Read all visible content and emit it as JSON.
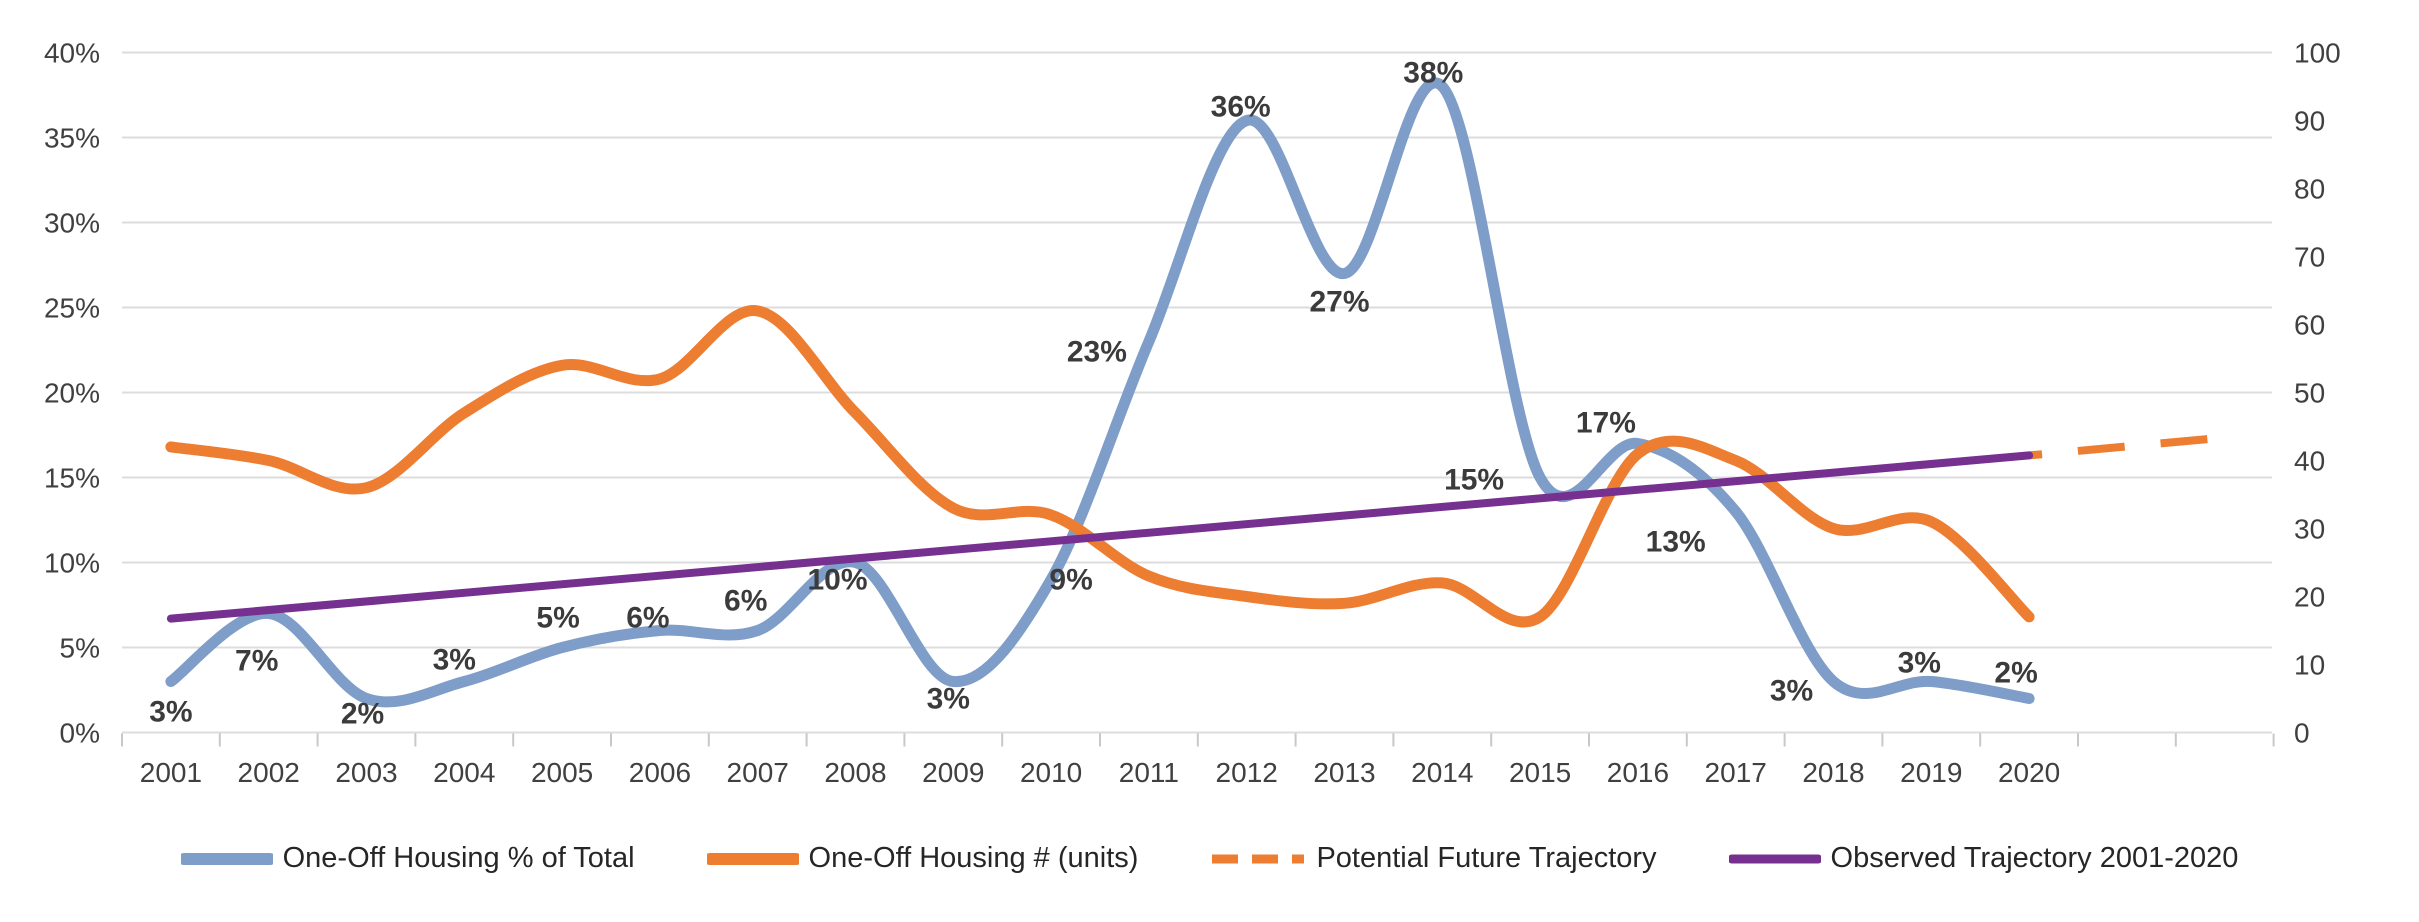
{
  "chart_data": {
    "type": "line",
    "title": "",
    "categories": [
      "2001",
      "2002",
      "2003",
      "2004",
      "2005",
      "2006",
      "2007",
      "2008",
      "2009",
      "2010",
      "2011",
      "2012",
      "2013",
      "2014",
      "2015",
      "2016",
      "2017",
      "2018",
      "2019",
      "2020"
    ],
    "left_axis": {
      "min": 0,
      "max": 40,
      "step": 5,
      "unit": "%",
      "ticks": [
        "0%",
        "5%",
        "10%",
        "15%",
        "20%",
        "25%",
        "30%",
        "35%",
        "40%"
      ]
    },
    "right_axis": {
      "min": 0,
      "max": 100,
      "step": 10,
      "ticks": [
        "0",
        "10",
        "20",
        "30",
        "40",
        "50",
        "60",
        "70",
        "80",
        "90",
        "100"
      ]
    },
    "grid": true,
    "legend_position": "bottom",
    "series": [
      {
        "name": "One-Off Housing % of Total",
        "axis": "left",
        "color": "#7E9DC8",
        "style": "solid",
        "smooth": true,
        "values": [
          3,
          7,
          2,
          3,
          5,
          6,
          6,
          10,
          3,
          9,
          23,
          36,
          27,
          38,
          15,
          17,
          13,
          3,
          3,
          2
        ],
        "labels": [
          "3%",
          "7%",
          "2%",
          "3%",
          "5%",
          "6%",
          "6%",
          "10%",
          "3%",
          "9%",
          "23%",
          "36%",
          "27%",
          "38%",
          "15%",
          "17%",
          "13%",
          "3%",
          "3%",
          "2%"
        ]
      },
      {
        "name": "One-Off Housing # (units)",
        "axis": "right",
        "color": "#ED7D31",
        "style": "solid",
        "smooth": true,
        "values": [
          42,
          40,
          36,
          47,
          54,
          52,
          62,
          47,
          33,
          32,
          23,
          20,
          19,
          22,
          17,
          41,
          40,
          30,
          31,
          17
        ]
      },
      {
        "name": "Potential Future Trajectory",
        "axis": "left",
        "color": "#ED7D31",
        "style": "dashed",
        "trend": true,
        "start": {
          "year": 2020,
          "pct": 16.3
        },
        "end": {
          "year": 2021.9,
          "pct": 17.3
        }
      },
      {
        "name": "Observed Trajectory 2001-2020",
        "axis": "left",
        "color": "#76308F",
        "style": "solid",
        "trend": true,
        "start": {
          "year": 2001,
          "pct": 6.7
        },
        "end": {
          "year": 2020,
          "pct": 16.3
        }
      }
    ]
  }
}
